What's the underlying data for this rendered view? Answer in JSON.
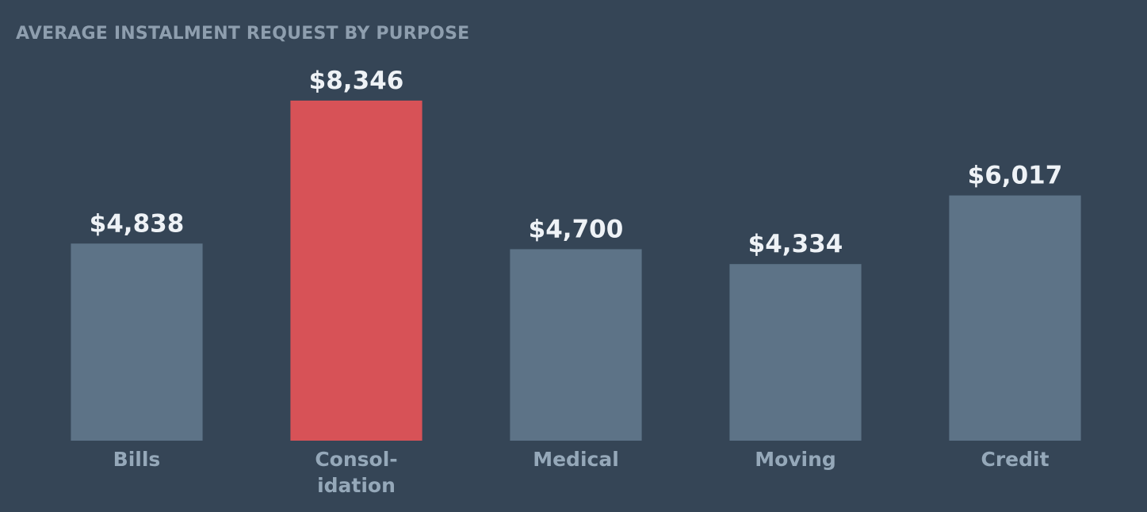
{
  "colors": {
    "background": "#354556",
    "bar_default": "#5d7387",
    "bar_highlight": "#d75257",
    "value_label": "#eef2f6",
    "category_label": "#95a8b9",
    "title": "#8e9eae"
  },
  "chart_data": {
    "type": "bar",
    "title": "AVERAGE INSTALMENT REQUEST BY PURPOSE",
    "xlabel": "",
    "ylabel": "",
    "ylim": [
      0,
      9200
    ],
    "grid": false,
    "legend": "none",
    "categories": [
      [
        "Bills"
      ],
      [
        "Consol-",
        "idation"
      ],
      [
        "Medical"
      ],
      [
        "Moving"
      ],
      [
        "Credit"
      ]
    ],
    "values": [
      4838,
      8346,
      4700,
      4334,
      6017
    ],
    "value_labels": [
      "$4,838",
      "$8,346",
      "$4,700",
      "$4,334",
      "$6,017"
    ],
    "highlight_index": 1
  }
}
